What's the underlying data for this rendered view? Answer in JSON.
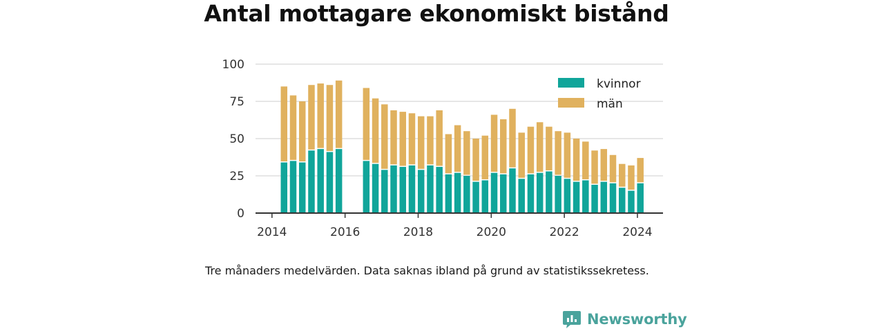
{
  "chart_data": {
    "type": "bar",
    "stacked": true,
    "title": "Antal mottagare ekonomiskt bistånd",
    "xlim": [
      2013.55,
      2024.7
    ],
    "ylim": [
      0,
      100
    ],
    "x_ticks": [
      2014,
      2016,
      2018,
      2020,
      2022,
      2024
    ],
    "y_ticks": [
      0,
      25,
      50,
      75,
      100
    ],
    "grid": true,
    "legend_position": "top-right",
    "x": [
      2014.33,
      2014.58,
      2014.83,
      2015.08,
      2015.33,
      2015.58,
      2015.83,
      2016.58,
      2016.83,
      2017.08,
      2017.33,
      2017.58,
      2017.83,
      2018.08,
      2018.33,
      2018.58,
      2018.83,
      2019.08,
      2019.33,
      2019.58,
      2019.83,
      2020.08,
      2020.33,
      2020.58,
      2020.83,
      2021.08,
      2021.33,
      2021.58,
      2021.83,
      2022.08,
      2022.33,
      2022.58,
      2022.83,
      2023.08,
      2023.33,
      2023.58,
      2023.83,
      2024.08
    ],
    "series": [
      {
        "name": "kvinnor",
        "color": "#10a59a",
        "values": [
          34,
          35,
          34,
          42,
          43,
          41,
          43,
          35,
          33,
          29,
          32,
          31,
          32,
          29,
          32,
          31,
          26,
          27,
          25,
          21,
          22,
          27,
          26,
          30,
          23,
          26,
          27,
          28,
          25,
          23,
          21,
          22,
          19,
          21,
          20,
          17,
          15,
          20
        ]
      },
      {
        "name": "män",
        "color": "#e0b15e",
        "values": [
          51,
          44,
          41,
          44,
          44,
          45,
          46,
          49,
          44,
          44,
          37,
          37,
          35,
          36,
          33,
          38,
          27,
          32,
          30,
          29,
          30,
          39,
          37,
          40,
          31,
          32,
          34,
          30,
          30,
          31,
          29,
          26,
          23,
          22,
          19,
          16,
          17,
          17
        ]
      }
    ],
    "annotations": [
      "Tre månaders medelvärden. Data saknas ibland på grund av statistikssekretess."
    ]
  },
  "note": "Tre månaders medelvärden. Data saknas ibland på grund av statistikssekretess.",
  "brand": {
    "name": "Newsworthy",
    "icon": "newsworthy-logo-icon",
    "color": "#4aa39c"
  },
  "colors": {
    "grid": "#dddddd",
    "axis": "#333333",
    "text": "#1a1a1a"
  }
}
